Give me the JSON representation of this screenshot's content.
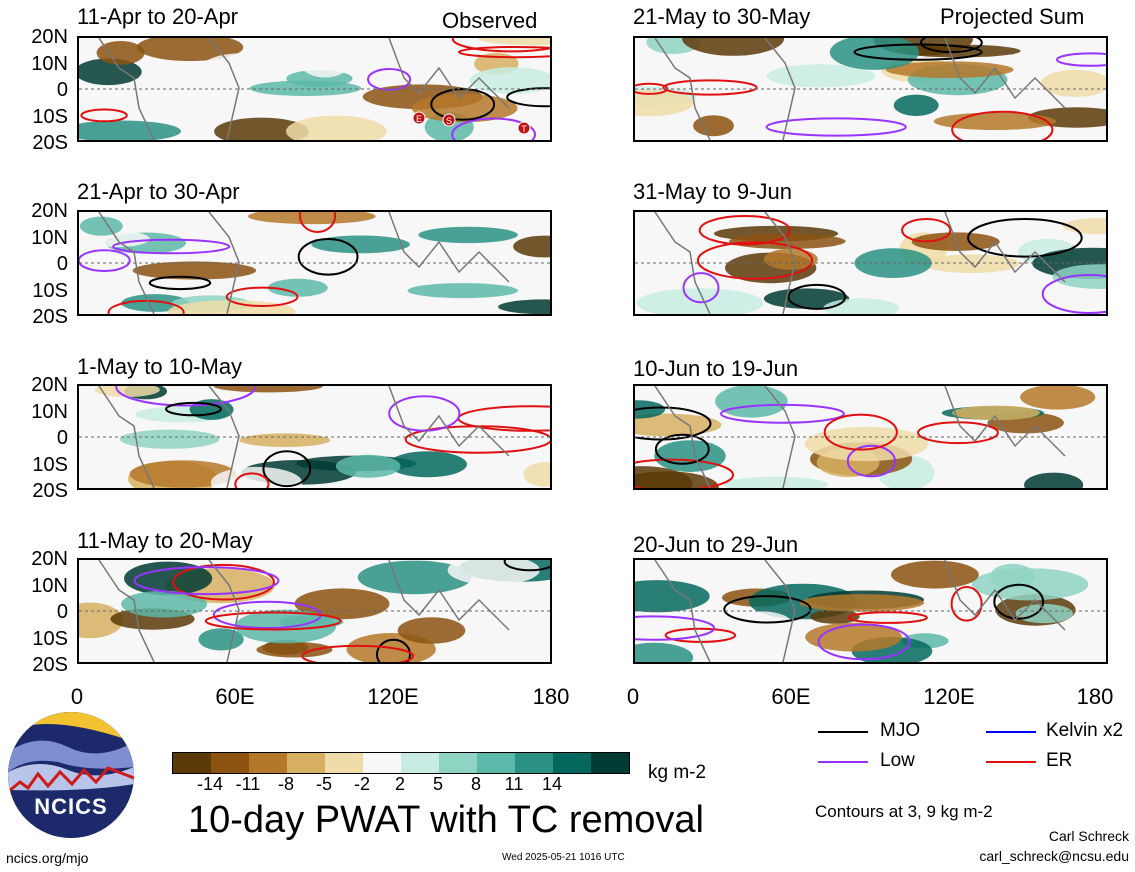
{
  "panels": [
    {
      "title": "11-Apr to 20-Apr",
      "tag": "Observed"
    },
    {
      "title": "21-May to 30-May",
      "tag": "Projected Sum"
    },
    {
      "title": "21-Apr to 30-Apr",
      "tag": ""
    },
    {
      "title": "31-May to 9-Jun",
      "tag": ""
    },
    {
      "title": "1-May to 10-May",
      "tag": ""
    },
    {
      "title": "10-Jun to 19-Jun",
      "tag": ""
    },
    {
      "title": "11-May to 20-May",
      "tag": ""
    },
    {
      "title": "20-Jun to 29-Jun",
      "tag": ""
    }
  ],
  "lat_labels": [
    "20N",
    "10N",
    "0",
    "10S",
    "20S"
  ],
  "lon_labels": [
    "0",
    "60E",
    "120E",
    "180"
  ],
  "colorbar": {
    "colors": [
      "#5c3a07",
      "#8c5210",
      "#b5782a",
      "#d6b060",
      "#efdca8",
      "#f7f7f7",
      "#c8ece3",
      "#8fd4c3",
      "#5cb8a8",
      "#2a9184",
      "#05685e",
      "#003b33"
    ],
    "labels": [
      "-14",
      "-11",
      "-8",
      "-5",
      "-2",
      "2",
      "5",
      "8",
      "11",
      "14"
    ],
    "units": "kg m-2"
  },
  "title": "10-day PWAT with TC removal",
  "legend": [
    {
      "label": "MJO",
      "color": "#000000"
    },
    {
      "label": "Kelvin x2",
      "color": "#0000ff"
    },
    {
      "label": "Low",
      "color": "#9933ff"
    },
    {
      "label": "ER",
      "color": "#e01010"
    }
  ],
  "contours_note": "Contours at 3, 9 kg m-2",
  "author": "Carl Schreck",
  "email": "carl_schreck@ncsu.edu",
  "website": "ncics.org/mjo",
  "timestamp": "Wed 2025-05-21 1016 UTC",
  "logo_text": "NCICS",
  "tc_markers": [
    "E",
    "S",
    "T"
  ]
}
